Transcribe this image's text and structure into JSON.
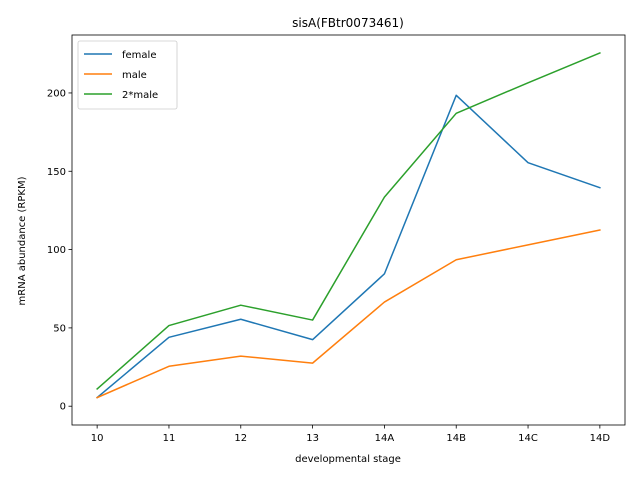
{
  "chart_data": {
    "type": "line",
    "title": "sisA(FBtr0073461)",
    "xlabel": "developmental stage",
    "ylabel": "mRNA abundance (RPKM)",
    "categories": [
      "10",
      "11",
      "12",
      "13",
      "14A",
      "14B",
      "14C",
      "14D"
    ],
    "ylim": [
      -12,
      237
    ],
    "yticks": [
      0,
      50,
      100,
      150,
      200
    ],
    "grid": false,
    "legend_position": "top-left",
    "series": [
      {
        "name": "female",
        "color": "#1f77b4",
        "values": [
          5.5,
          44,
          55.5,
          42.5,
          84.5,
          198.5,
          155.5,
          139.5
        ]
      },
      {
        "name": "male",
        "color": "#ff7f0e",
        "values": [
          5.5,
          25.5,
          32,
          27.5,
          66.5,
          93.5,
          103,
          112.5
        ]
      },
      {
        "name": "2*male",
        "color": "#2ca02c",
        "values": [
          11,
          51.5,
          64.5,
          55,
          133.5,
          187,
          206.5,
          225.5
        ]
      }
    ]
  }
}
